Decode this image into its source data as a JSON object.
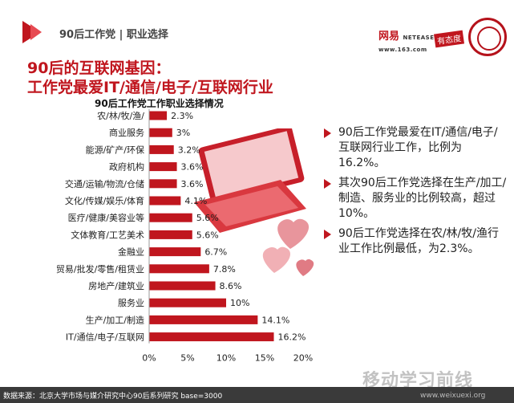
{
  "header": {
    "title": "90后工作党 | 职业选择",
    "brand_netease": "网易",
    "brand_netease_en": "NETEASE",
    "brand_netease_url": "www.163.com",
    "brand_youtai": "有态度"
  },
  "headline": {
    "line1": "90后的互联网基因：",
    "line2": "工作党最爱IT/通信/电子/互联网行业"
  },
  "bullets": [
    "90后工作党最爱在IT/通信/电子/互联网行业工作，比例为16.2%。",
    "其次90后工作党选择在生产/加工/制造、服务业的比例较高，超过10%。",
    "90后工作党选择在农/林/牧/渔行业工作比例最低，为2.3%。"
  ],
  "footer": {
    "source": "数据来源：北京大学市场与媒介研究中心90后系列研究 base=3000",
    "watermark": "移动学习前线",
    "watermark_url": "www.weixuexi.org"
  },
  "colors": {
    "accent": "#c0161e",
    "bar": "#c0161e"
  },
  "chart_data": {
    "type": "bar",
    "orientation": "horizontal",
    "title": "90后工作党工作职业选择情况",
    "categories": [
      "农/林/牧/渔/",
      "商业服务",
      "能源/矿产/环保",
      "政府机构",
      "交通/运输/物流/仓储",
      "文化/传媒/娱乐/体育",
      "医疗/健康/美容业等",
      "文体教育/工艺美术",
      "金融业",
      "贸易/批发/零售/租赁业",
      "房地产/建筑业",
      "服务业",
      "生产/加工/制造",
      "IT/通信/电子/互联网"
    ],
    "values": [
      2.3,
      3,
      3.2,
      3.6,
      3.6,
      4.1,
      5.6,
      5.6,
      6.7,
      7.8,
      8.6,
      10,
      14.1,
      16.2
    ],
    "value_labels": [
      "2.3%",
      "3%",
      "3.2%",
      "3.6%",
      "3.6%",
      "4.1%",
      "5.6%",
      "5.6%",
      "6.7%",
      "7.8%",
      "8.6%",
      "10%",
      "14.1%",
      "16.2%"
    ],
    "xticks": [
      "0%",
      "5%",
      "10%",
      "15%",
      "20%"
    ],
    "xlim": [
      0,
      20
    ],
    "grid": false,
    "legend": "none"
  }
}
